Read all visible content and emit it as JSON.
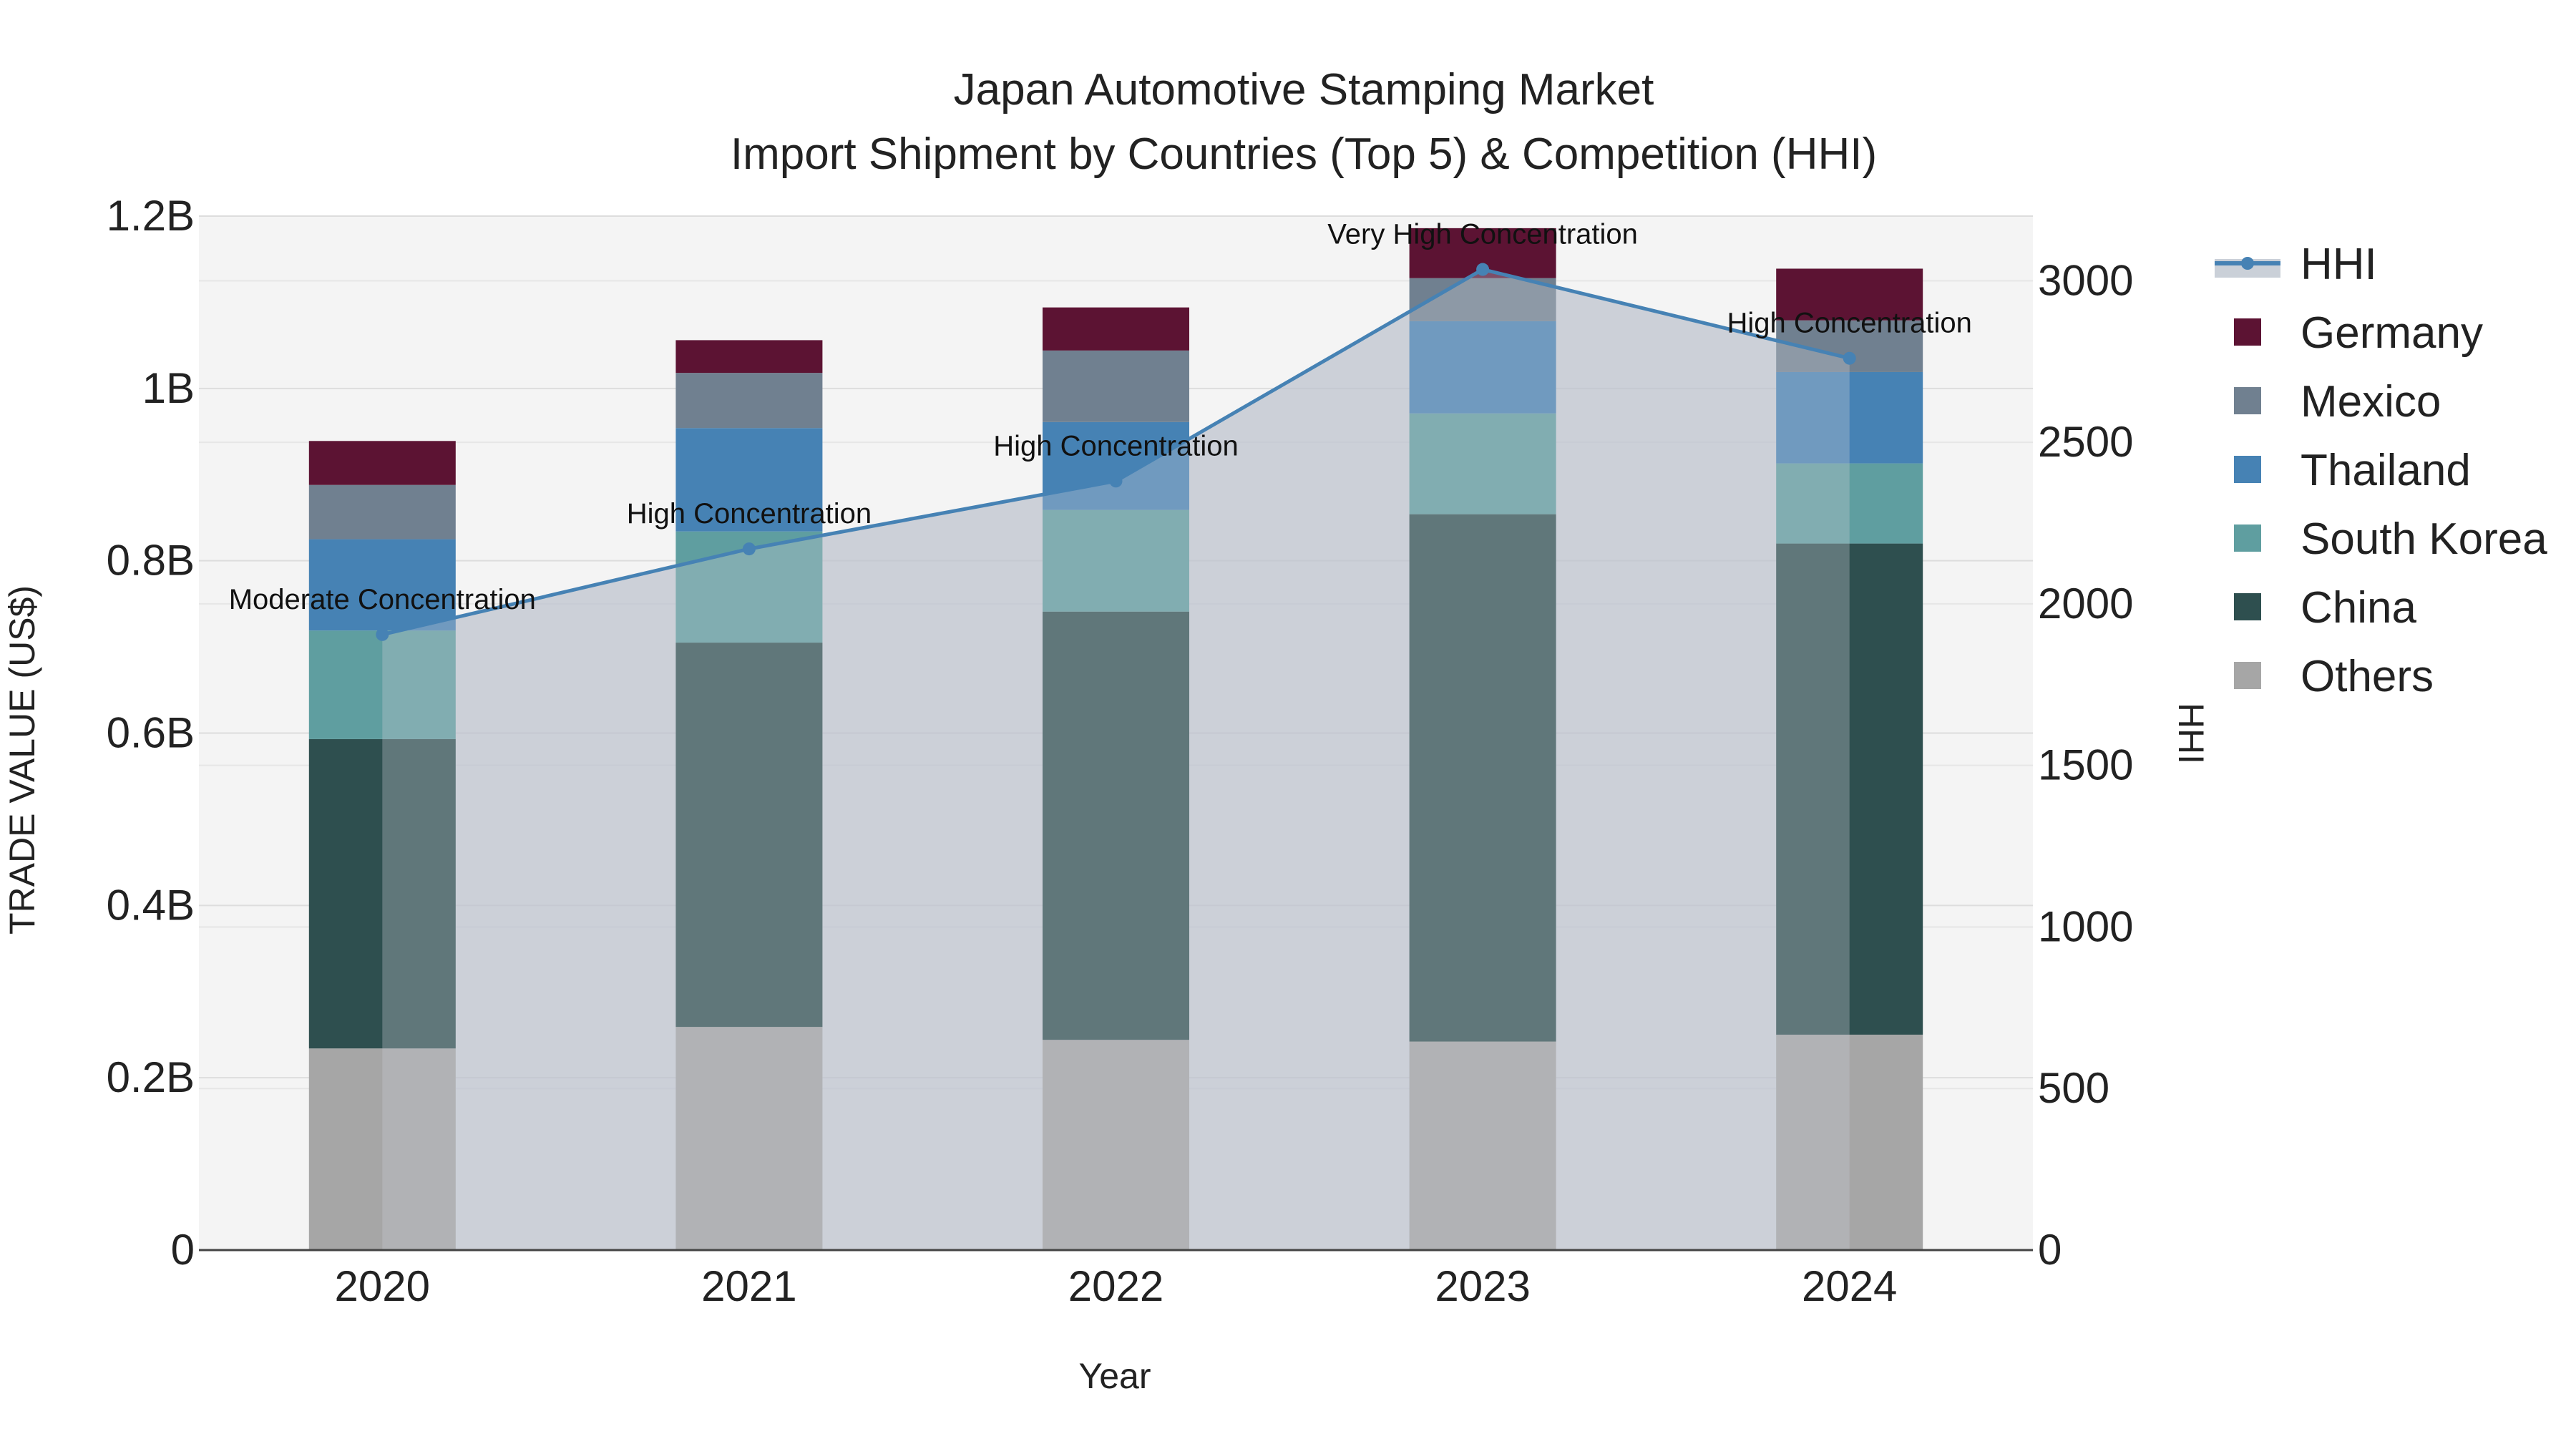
{
  "chart_data": {
    "type": "bar",
    "title": "Japan Automotive Stamping Market",
    "subtitle": "Import Shipment by Countries (Top 5) & Competition (HHI)",
    "xlabel": "Year",
    "ylabel": "TRADE VALUE (US$)",
    "y2label": "HHI",
    "categories": [
      "2020",
      "2021",
      "2022",
      "2023",
      "2024"
    ],
    "ylim": [
      0,
      1.2
    ],
    "y2lim": [
      0,
      3200
    ],
    "y_ticks": [
      "0",
      "0.2B",
      "0.4B",
      "0.6B",
      "0.8B",
      "1B",
      "1.2B"
    ],
    "y2_ticks": [
      "0",
      "500",
      "1000",
      "1500",
      "2000",
      "2500",
      "3000"
    ],
    "series": [
      {
        "name": "Others",
        "color": "#a6a6a6",
        "values": [
          0.234,
          0.259,
          0.244,
          0.242,
          0.25
        ]
      },
      {
        "name": "China",
        "color": "#2e4f4f",
        "values": [
          0.359,
          0.446,
          0.497,
          0.612,
          0.57
        ]
      },
      {
        "name": "South Korea",
        "color": "#5f9ea0",
        "values": [
          0.126,
          0.129,
          0.118,
          0.117,
          0.093
        ]
      },
      {
        "name": "Thailand",
        "color": "#4682b4",
        "values": [
          0.106,
          0.12,
          0.102,
          0.107,
          0.106
        ]
      },
      {
        "name": "Mexico",
        "color": "#708090",
        "values": [
          0.063,
          0.064,
          0.083,
          0.05,
          0.06
        ]
      },
      {
        "name": "Germany",
        "color": "#5c1333",
        "values": [
          0.051,
          0.038,
          0.05,
          0.058,
          0.06
        ]
      }
    ],
    "hhi": {
      "name": "HHI",
      "color": "#4682b4",
      "values": [
        1905,
        2170,
        2380,
        3035,
        2760
      ],
      "labels": [
        "Moderate Concentration",
        "High Concentration",
        "High Concentration",
        "Very High Concentration",
        "High Concentration"
      ]
    },
    "legend_order": [
      "HHI",
      "Germany",
      "Mexico",
      "Thailand",
      "South Korea",
      "China",
      "Others"
    ]
  }
}
